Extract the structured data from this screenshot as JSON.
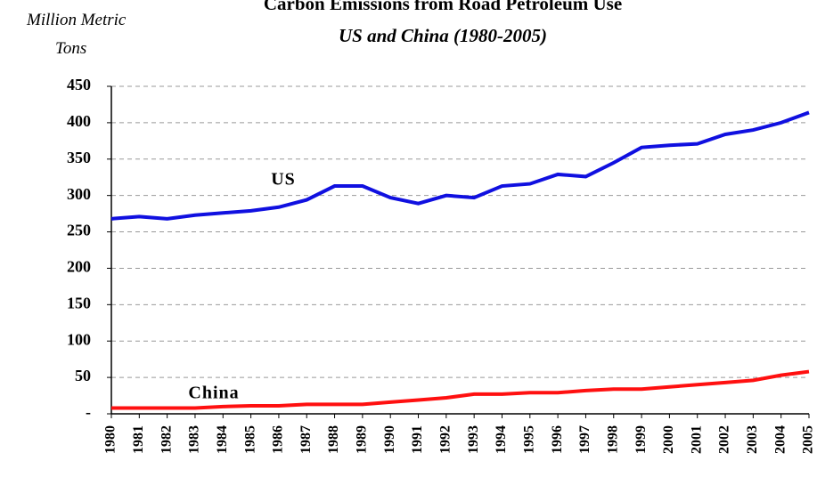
{
  "chart_data": {
    "type": "line",
    "title": "Carbon Emissions from Road Petroleum Use",
    "subtitle": "US and China (1980-2005)",
    "y_label": "Million Metric Tons",
    "categories": [
      "1980",
      "1981",
      "1982",
      "1983",
      "1984",
      "1985",
      "1986",
      "1987",
      "1988",
      "1989",
      "1990",
      "1991",
      "1992",
      "1993",
      "1994",
      "1995",
      "1996",
      "1997",
      "1998",
      "1999",
      "2000",
      "2001",
      "2002",
      "2003",
      "2004",
      "2005"
    ],
    "series": [
      {
        "name": "US",
        "color": "#1010e0",
        "values": [
          268,
          271,
          268,
          273,
          276,
          279,
          284,
          294,
          313,
          313,
          297,
          289,
          300,
          297,
          313,
          316,
          329,
          326,
          345,
          366,
          369,
          371,
          384,
          390,
          400,
          414
        ]
      },
      {
        "name": "China",
        "color": "#ff1010",
        "values": [
          8,
          8,
          8,
          8,
          10,
          11,
          11,
          13,
          13,
          13,
          16,
          19,
          22,
          27,
          27,
          29,
          29,
          32,
          34,
          34,
          37,
          40,
          43,
          46,
          53,
          58
        ]
      }
    ],
    "ylim": [
      0,
      450
    ],
    "yticks": [
      {
        "value": 0,
        "label": "-"
      },
      50,
      100,
      150,
      200,
      250,
      300,
      350,
      400,
      450
    ],
    "grid": true
  }
}
